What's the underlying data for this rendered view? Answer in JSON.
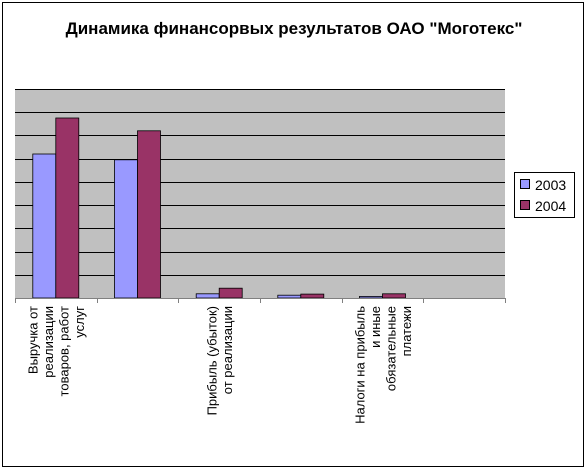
{
  "chart_data": {
    "type": "bar",
    "title": "Динамика финансорвых результатов ОАО \"Моготекс\"",
    "categories": [
      "Выручка от реализации товаров, работ услуг",
      "",
      "Прибыль (убыток) от реализации",
      "",
      "Налоги на прибыль и иные обязательные платежи",
      ""
    ],
    "series": [
      {
        "name": "2003",
        "color": "#9999ff",
        "values": [
          6.2,
          5.95,
          0.18,
          0.12,
          0.07,
          0
        ]
      },
      {
        "name": "2004",
        "color": "#993366",
        "values": [
          7.75,
          7.2,
          0.42,
          0.17,
          0.18,
          0
        ]
      }
    ],
    "ylim": [
      0,
      9
    ],
    "grid": true,
    "plot_background": "#c0c0c0",
    "legend": "right"
  }
}
